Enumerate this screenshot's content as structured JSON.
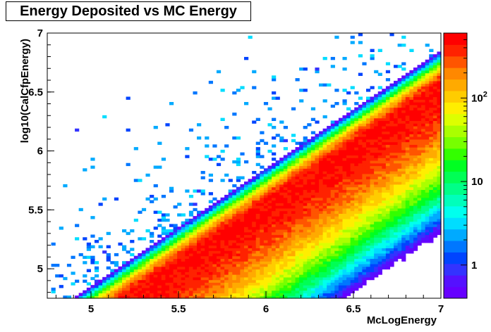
{
  "chart_data": {
    "type": "heatmap",
    "title": "Energy Deposited vs MC Energy",
    "xlabel": "McLogEnergy",
    "ylabel": "log10(CalCfpEnergy)",
    "xlim": [
      4.75,
      7.0
    ],
    "ylim": [
      4.75,
      7.0
    ],
    "x_ticks": [
      5,
      5.5,
      6,
      6.5,
      7
    ],
    "x_tick_labels": [
      "5",
      "5.5",
      "6",
      "6.5",
      "7"
    ],
    "y_ticks": [
      5,
      5.5,
      6,
      6.5,
      7
    ],
    "y_tick_labels": [
      "5",
      "5.5",
      "6",
      "6.5",
      "7"
    ],
    "colorbar": {
      "scale": "log",
      "range": [
        0.4,
        600
      ],
      "tick_values": [
        1,
        10,
        100
      ],
      "tick_labels": [
        "1",
        "10",
        "10^2"
      ]
    },
    "bins": {
      "nx": 100,
      "ny": 100
    },
    "model": {
      "description": "estimated density: ridge along y = x - 0.45, wide spread below, narrow above",
      "ridge_offset": -0.45,
      "sigma_below": 0.33,
      "sigma_above": 0.08,
      "peak_counts": 500
    },
    "palette": [
      "#6600ff",
      "#5511ff",
      "#3333ff",
      "#0044ff",
      "#0077ff",
      "#00aaff",
      "#00ddff",
      "#00ffee",
      "#00ffbb",
      "#00ff88",
      "#00ff55",
      "#00ff22",
      "#33ff00",
      "#77ff00",
      "#aaff00",
      "#ddff00",
      "#ffee00",
      "#ffcc00",
      "#ffaa00",
      "#ff8800",
      "#ff5500",
      "#ff2200",
      "#ff0000"
    ]
  }
}
